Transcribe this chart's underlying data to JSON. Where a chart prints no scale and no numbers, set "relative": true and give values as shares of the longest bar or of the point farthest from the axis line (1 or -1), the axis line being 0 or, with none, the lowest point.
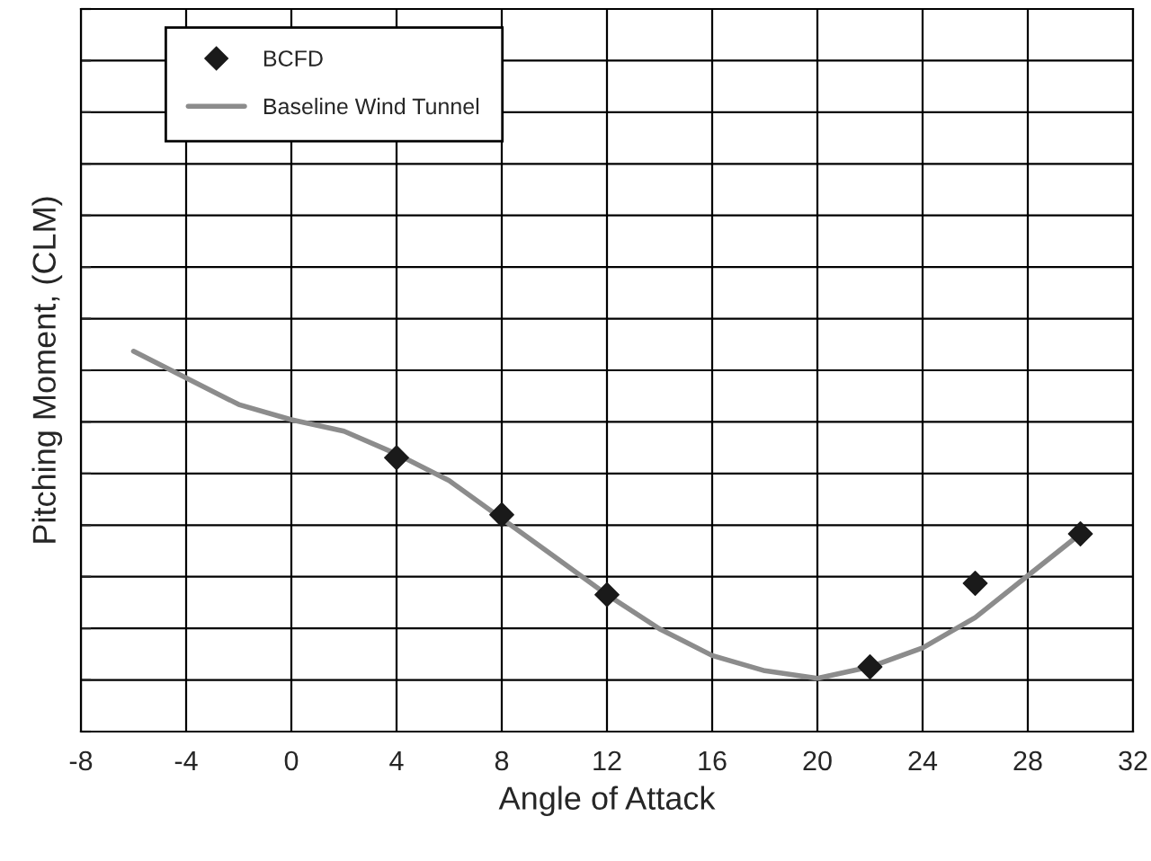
{
  "chart_data": {
    "type": "line",
    "relative": true,
    "xlabel": "Angle of Attack",
    "ylabel": "Pitching Moment, (CLM)",
    "xlim": [
      -8,
      32
    ],
    "xticks": [
      -8,
      -4,
      0,
      4,
      8,
      12,
      16,
      20,
      24,
      28,
      32
    ],
    "grid": true,
    "legend": "top left",
    "series": [
      {
        "name": "BCFD",
        "type": "scatter",
        "marker": "diamond",
        "color": "#1a1a1a",
        "x": [
          4,
          8,
          12,
          22,
          26,
          30
        ],
        "values": [
          0.72,
          0.57,
          0.36,
          0.17,
          0.39,
          0.52
        ]
      },
      {
        "name": "Baseline Wind Tunnel",
        "marker": "none",
        "line_style": "solid",
        "color": "#8c8c8c",
        "x": [
          -6,
          -4,
          -2,
          0,
          2,
          4,
          6,
          8,
          10,
          12,
          14,
          16,
          18,
          20,
          22,
          24,
          26,
          28,
          30
        ],
        "values": [
          1,
          0.93,
          0.86,
          0.82,
          0.79,
          0.73,
          0.66,
          0.56,
          0.46,
          0.36,
          0.27,
          0.2,
          0.16,
          0.14,
          0.17,
          0.22,
          0.3,
          0.41,
          0.52
        ]
      }
    ]
  }
}
